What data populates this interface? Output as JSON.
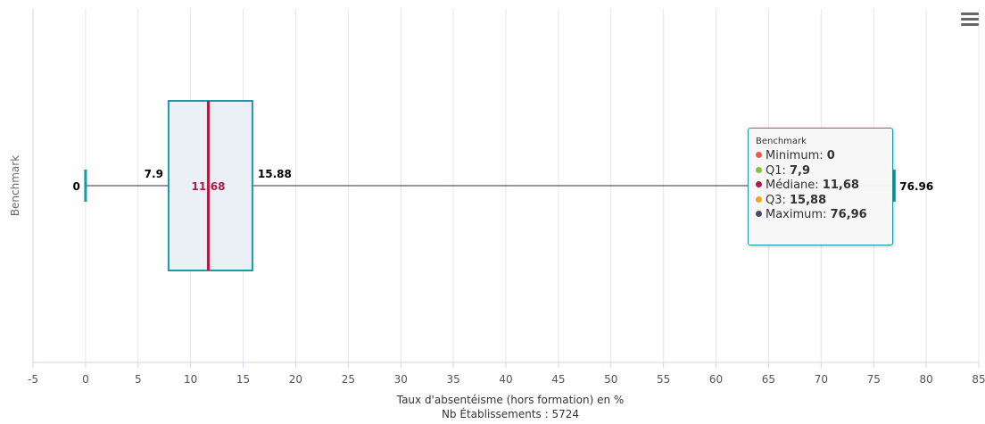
{
  "chart_data": {
    "type": "boxplot",
    "title": "",
    "xlabel": "Taux d'absentéisme (hors formation) en %",
    "subtitle_below": "Nb Établissements : 5724",
    "ylabel": "Benchmark",
    "xlim": [
      -5,
      85
    ],
    "xticks": [
      -5,
      0,
      5,
      10,
      15,
      20,
      25,
      30,
      35,
      40,
      45,
      50,
      55,
      60,
      65,
      70,
      75,
      80,
      85
    ],
    "grid": true,
    "series": [
      {
        "name": "Benchmark",
        "min": 0,
        "q1": 7.9,
        "median": 11.68,
        "q3": 15.88,
        "max": 76.96,
        "labels": {
          "min": "0",
          "q1": "7.9",
          "median": "11.68",
          "q3": "15.88",
          "max": "76.96"
        }
      }
    ],
    "colors": {
      "box_stroke": "#1a9aa7",
      "box_fill": "#eaf0f5",
      "median": "#b01c42",
      "whisker_line": "#2c2c3a",
      "grid": "#e6e6e6"
    }
  },
  "tooltip": {
    "title": "Benchmark",
    "rows": [
      {
        "label": "Minimum: ",
        "value": "0",
        "color": "#f45b4a"
      },
      {
        "label": "Q1: ",
        "value": "7,9",
        "color": "#8bbf3a"
      },
      {
        "label": "Médiane: ",
        "value": "11,68",
        "color": "#b01c42"
      },
      {
        "label": "Q3: ",
        "value": "15,88",
        "color": "#f0a81e"
      },
      {
        "label": "Maximum: ",
        "value": "76,96",
        "color": "#4a4a66"
      }
    ]
  },
  "menu": {
    "icon": "hamburger-menu-icon"
  }
}
